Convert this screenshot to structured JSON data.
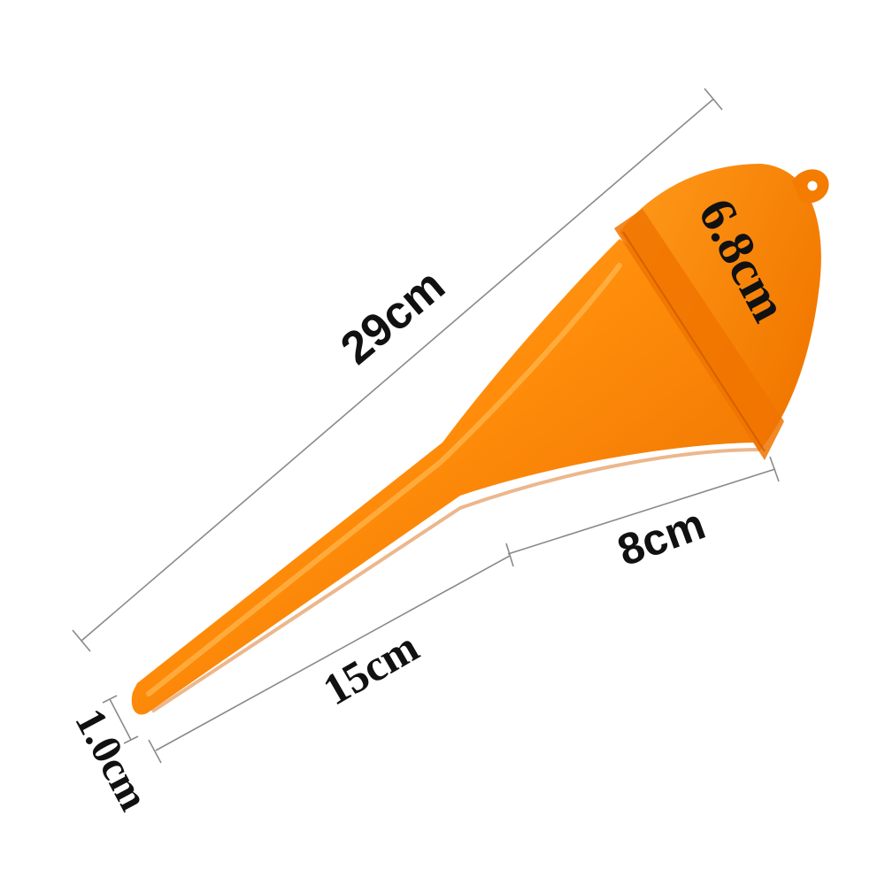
{
  "product": {
    "colors": {
      "body_light": "#ffa21f",
      "body_main": "#ff8c0a",
      "body_dark": "#e86d00",
      "rim": "#f07a00",
      "dimension_line": "#8a8a8a",
      "label": "#111111"
    }
  },
  "dimensions": {
    "overall_length": "29cm",
    "mouth_diameter": "6.8cm",
    "cone_length": "8cm",
    "spout_length": "15cm",
    "tip_diameter": "1.0cm"
  }
}
